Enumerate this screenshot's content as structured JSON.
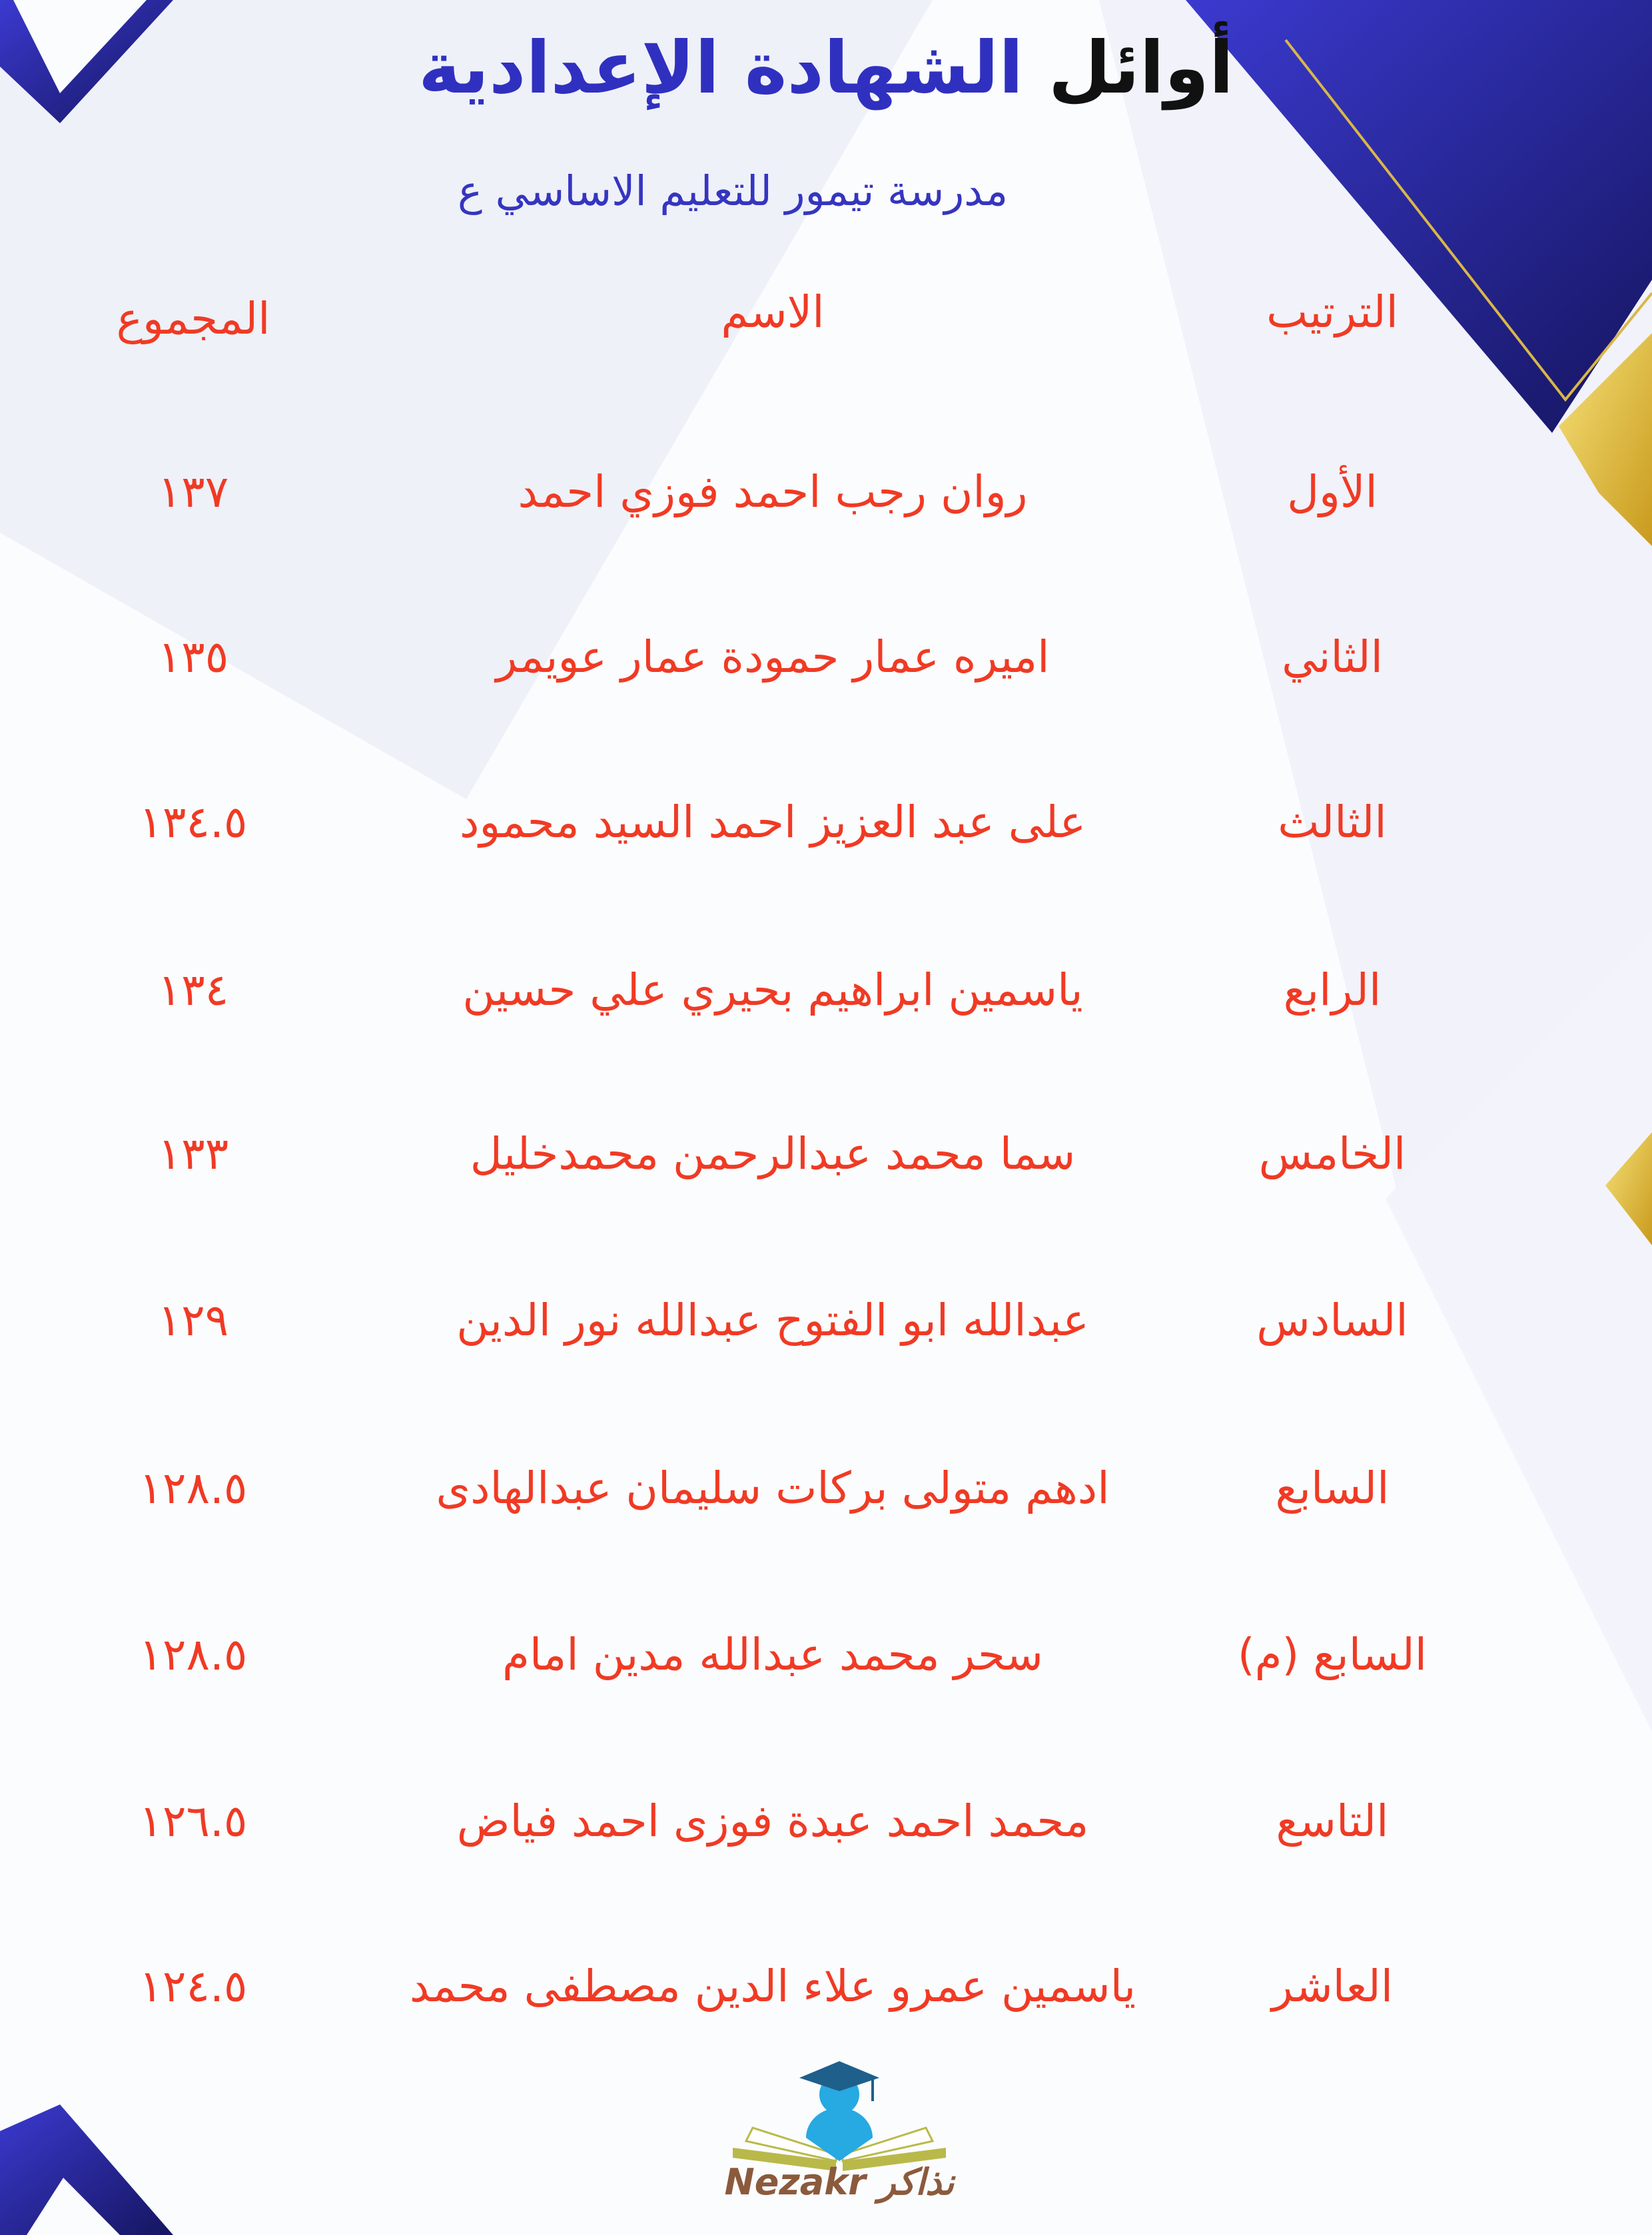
{
  "header": {
    "title_black": "أوائل",
    "title_blue": "الشهادة الإعدادية",
    "subtitle": "مدرسة تيمور للتعليم الاساسي ع"
  },
  "table": {
    "columns": {
      "rank": "الترتيب",
      "name": "الاسم",
      "total": "المجموع"
    },
    "rows": [
      {
        "rank": "الأول",
        "name": "روان رجب احمد فوزي احمد",
        "total": "١٣٧"
      },
      {
        "rank": "الثاني",
        "name": "اميره عمار حمودة عمار عويمر",
        "total": "١٣٥"
      },
      {
        "rank": "الثالث",
        "name": "على عبد العزيز احمد السيد محمود",
        "total": "١٣٤.٥"
      },
      {
        "rank": "الرابع",
        "name": "ياسمين ابراهيم بحيري علي حسين",
        "total": "١٣٤"
      },
      {
        "rank": "الخامس",
        "name": "سما محمد عبدالرحمن محمدخليل",
        "total": "١٣٣"
      },
      {
        "rank": "السادس",
        "name": "عبدالله ابو الفتوح عبدالله نور الدين",
        "total": "١٢٩"
      },
      {
        "rank": "السابع",
        "name": "ادهم متولى بركات سليمان عبدالهادى",
        "total": "١٢٨.٥"
      },
      {
        "rank": "السابع (م)",
        "name": "سحر محمد عبدالله مدين امام",
        "total": "١٢٨.٥"
      },
      {
        "rank": "التاسع",
        "name": "محمد احمد عبدة فوزى احمد فياض",
        "total": "١٢٦.٥"
      },
      {
        "rank": "العاشر",
        "name": "ياسمين عمرو علاء الدين مصطفى محمد",
        "total": "١٢٤.٥"
      }
    ]
  },
  "logo": {
    "text": "Nezakr نذاكر"
  },
  "colors": {
    "accent_blue": "#3030c0",
    "text_red": "#f03a24",
    "gold": "#e8c53a"
  }
}
